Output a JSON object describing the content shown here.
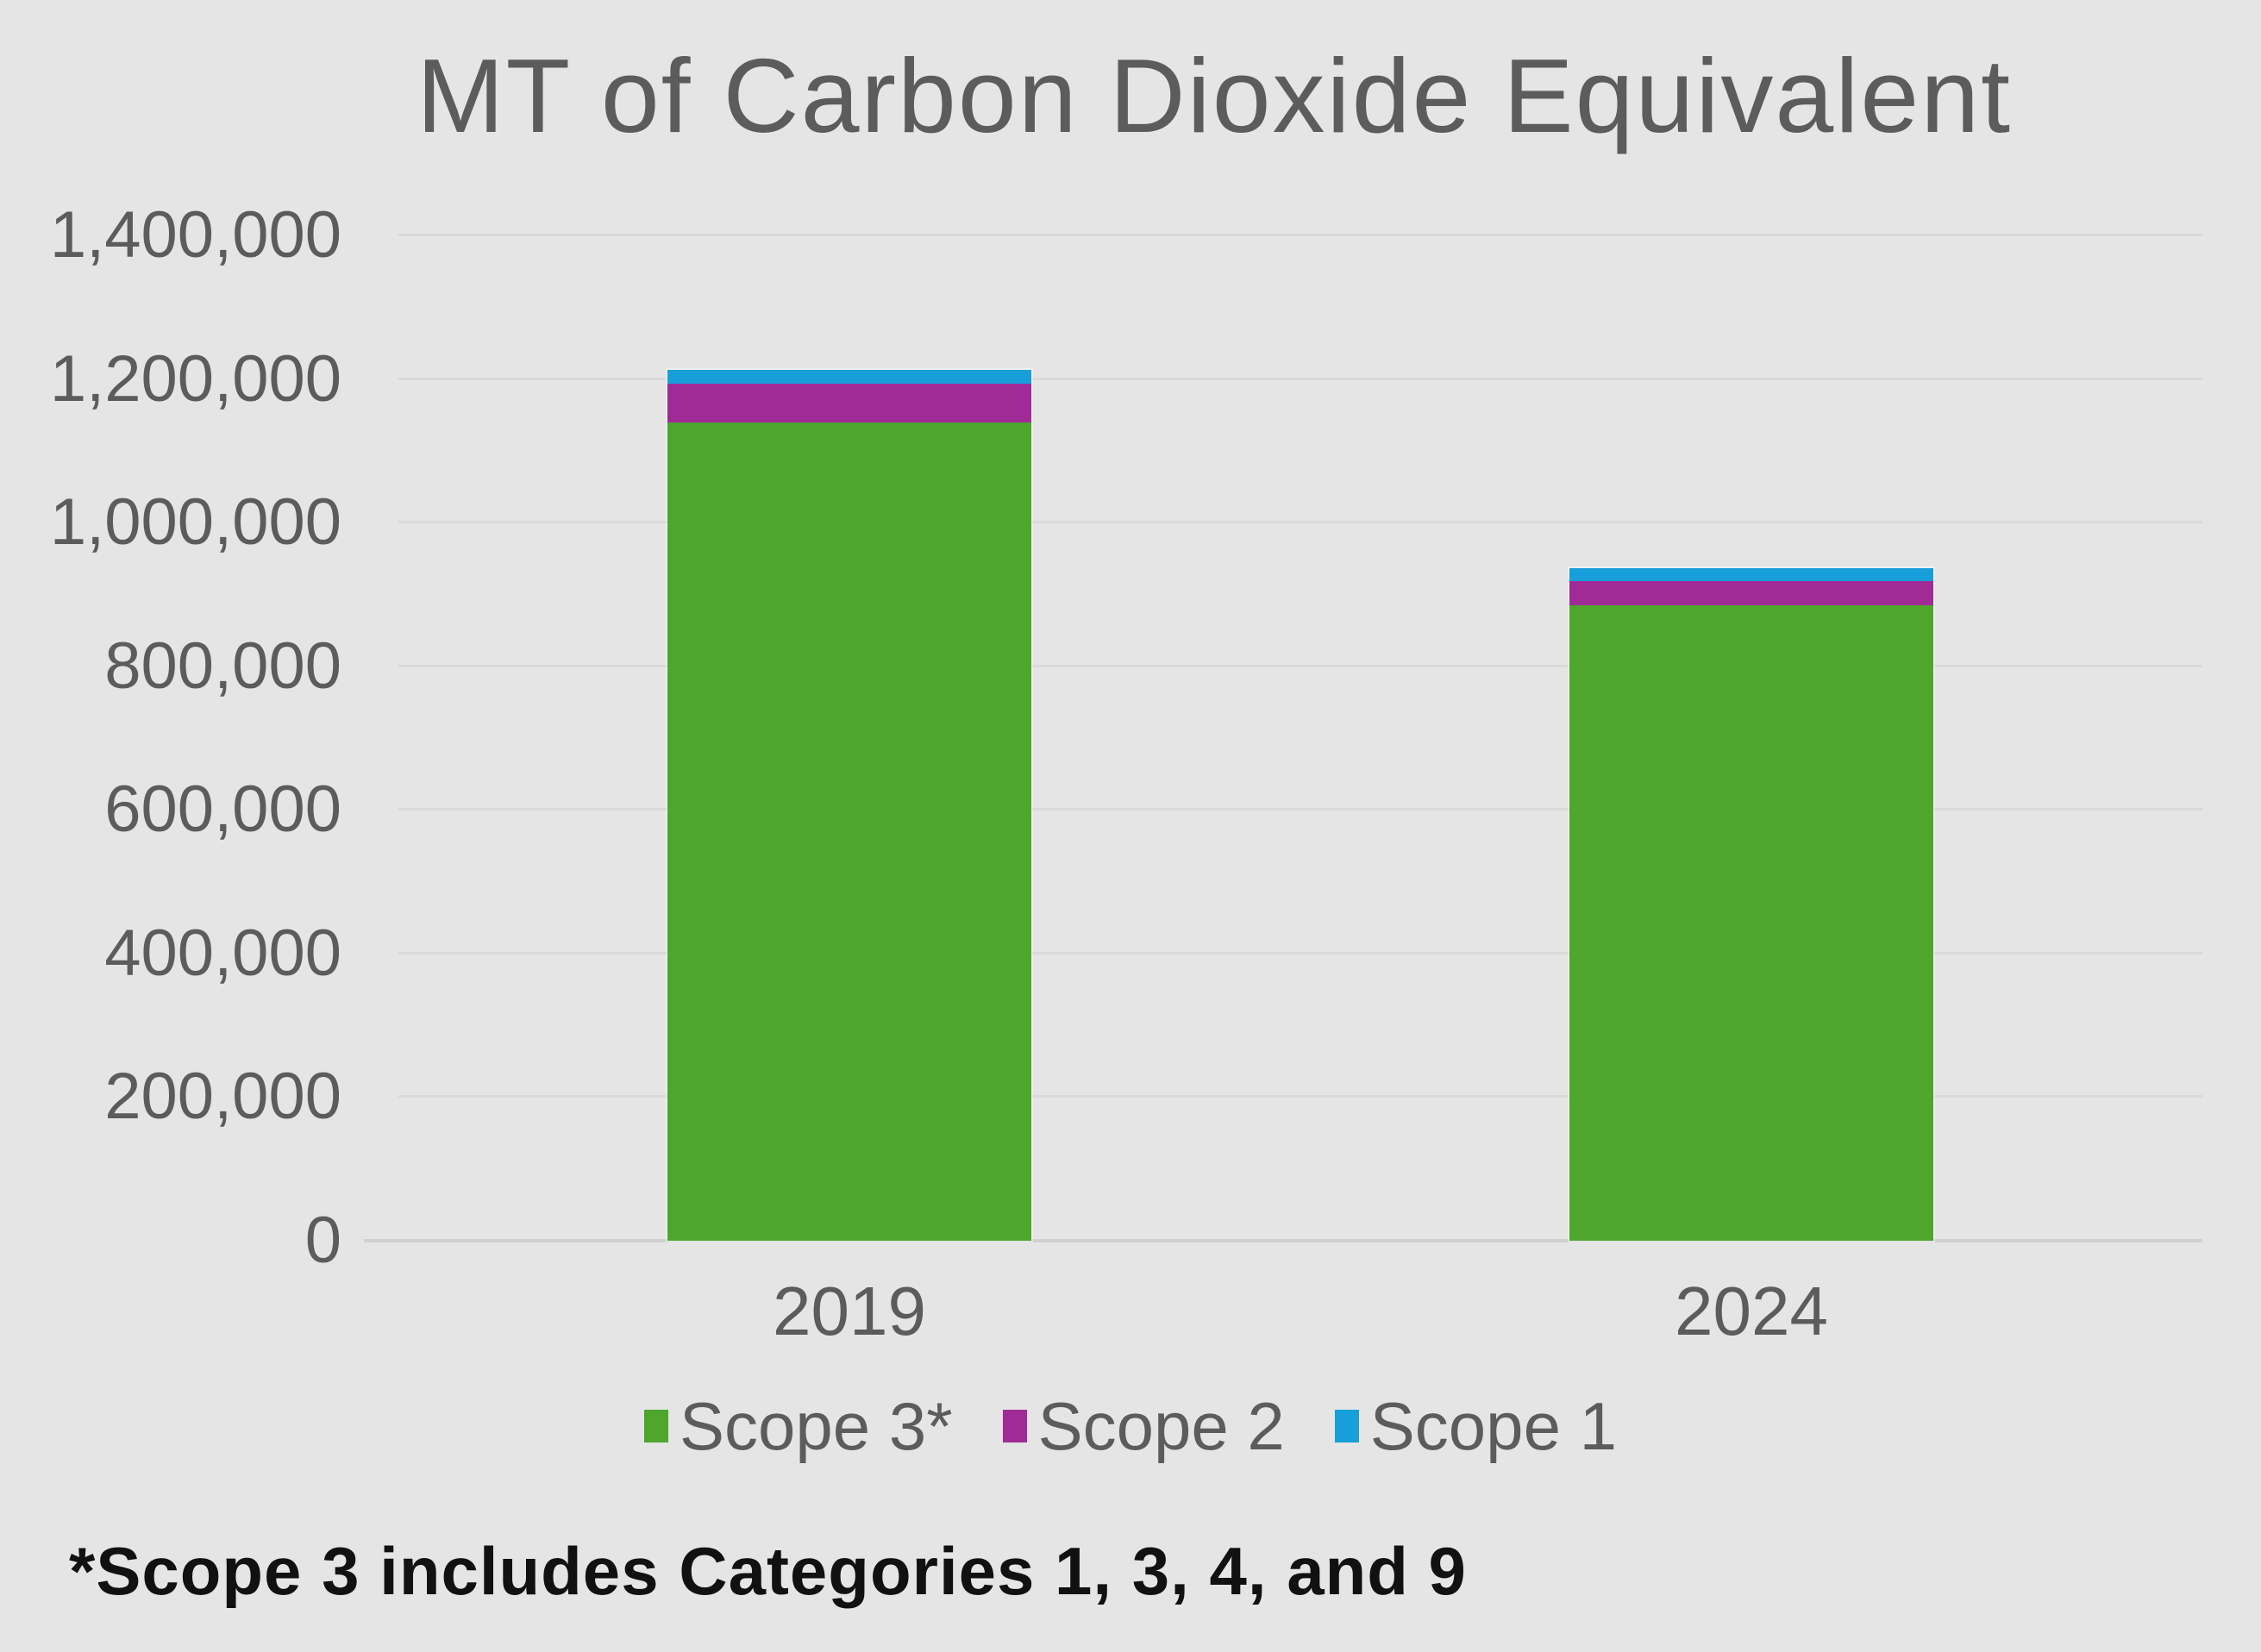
{
  "footnote": "*Scope 3 includes Categories 1, 3, 4, and 9",
  "colors": {
    "background": "#e5e5e5",
    "gridline": "#d9d9d9",
    "axis_line": "#d0d0d0",
    "label_text": "#5c5c5c",
    "footnote_text": "#111111",
    "scope3_green": "#4ea62d",
    "scope2_purple": "#a02b96",
    "scope1_blue": "#189ed9"
  },
  "chart_data": {
    "type": "bar",
    "stacked": true,
    "title": "MT of Carbon Dioxide Equivalent",
    "categories": [
      "2019",
      "2024"
    ],
    "series": [
      {
        "name": "Scope 3*",
        "color_key": "scope3_green",
        "values": [
          1140000,
          885000
        ]
      },
      {
        "name": "Scope 2",
        "color_key": "scope2_purple",
        "values": [
          54000,
          33000
        ]
      },
      {
        "name": "Scope 1",
        "color_key": "scope1_blue",
        "values": [
          19000,
          18000
        ]
      }
    ],
    "stack_totals_estimated": [
      1213000,
      936000
    ],
    "ylim": [
      0,
      1400000
    ],
    "ytick_interval": 200000,
    "ytick_labels": [
      "0",
      "200,000",
      "400,000",
      "600,000",
      "800,000",
      "1,000,000",
      "1,200,000",
      "1,400,000"
    ],
    "grid": true,
    "legend_position": "bottom",
    "xlabel": "",
    "ylabel": ""
  }
}
